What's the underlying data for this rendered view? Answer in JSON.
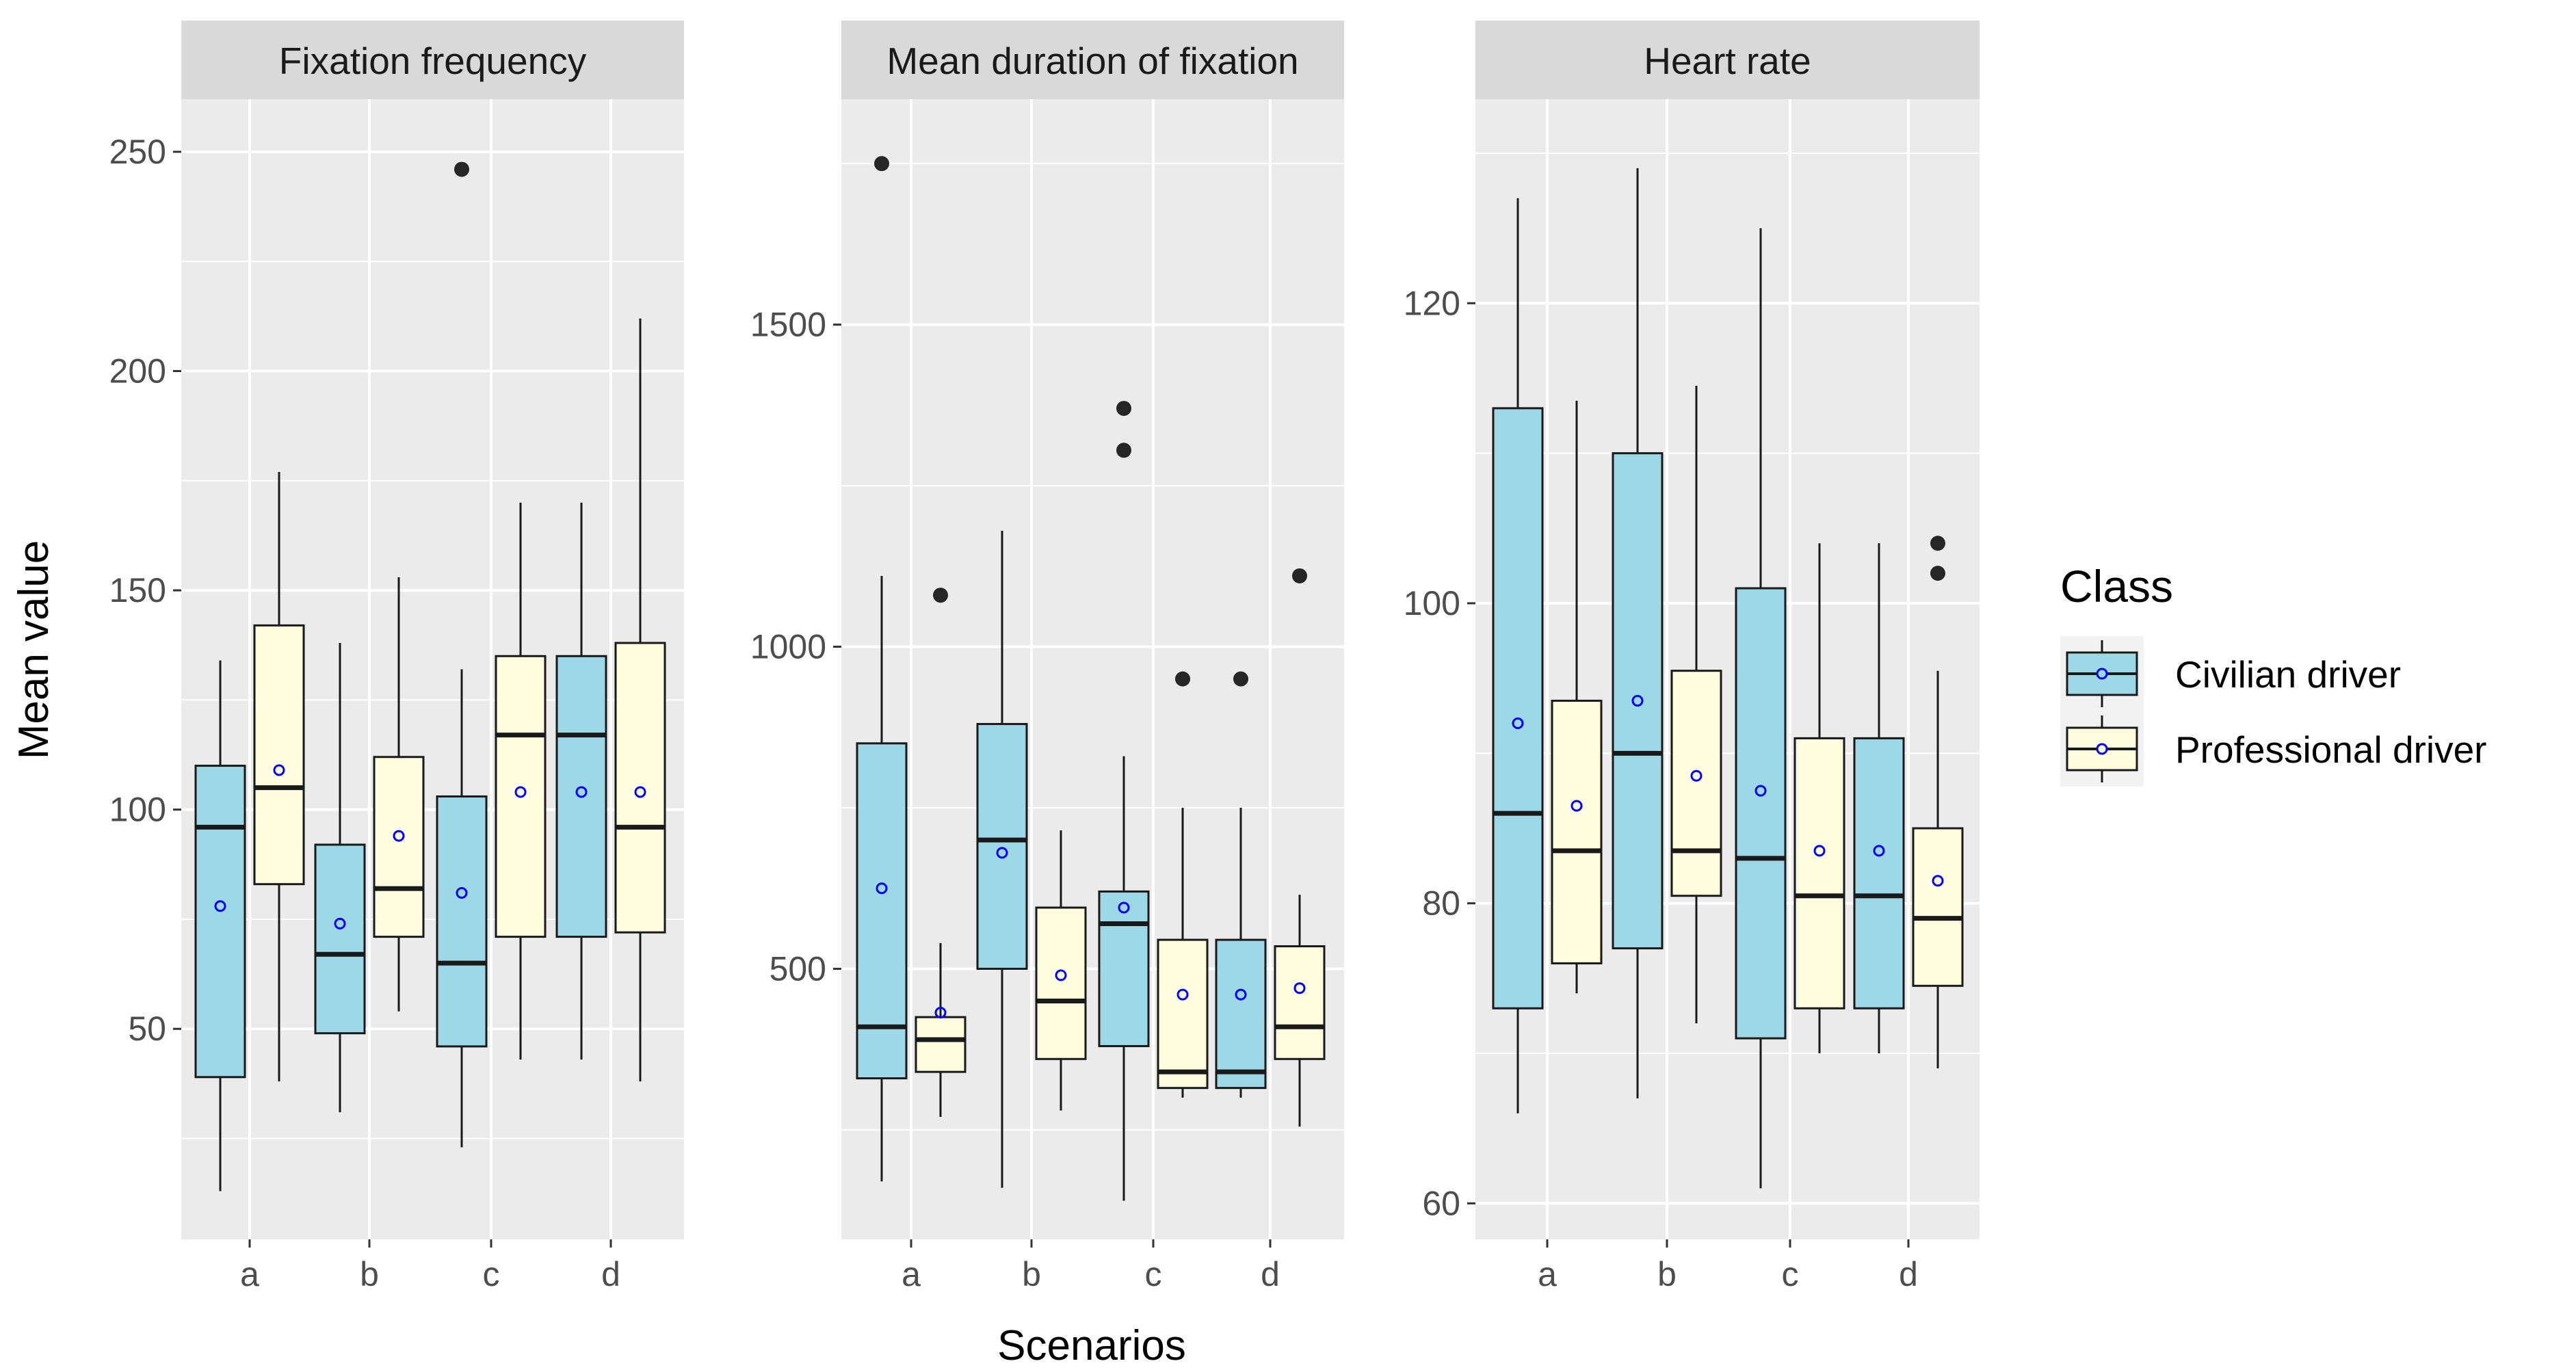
{
  "chart_data": {
    "type": "boxplot",
    "xlabel": "Scenarios",
    "ylabel": "Mean value",
    "legend": {
      "title": "Class",
      "position": "right",
      "entries": [
        {
          "name": "Civilian driver",
          "fill": "#9dd8e6"
        },
        {
          "name": "Professional driver",
          "fill": "#fffde0"
        }
      ]
    },
    "colors": {
      "panel_bg": "#ebebeb",
      "strip_bg": "#d9d9d9",
      "grid": "#ffffff",
      "mean_marker": "#0000ff",
      "outline": "#1a1a1a"
    },
    "panels": [
      {
        "title": "Fixation frequency",
        "ylim": [
          2,
          262
        ],
        "yticks": [
          50,
          100,
          150,
          200,
          250
        ],
        "categories": [
          "a",
          "b",
          "c",
          "d"
        ],
        "series": [
          {
            "name": "Civilian driver",
            "boxes": [
              {
                "lower": 13,
                "q1": 39,
                "median": 96,
                "q3": 110,
                "upper": 134,
                "mean": 78,
                "outliers": []
              },
              {
                "lower": 31,
                "q1": 49,
                "median": 67,
                "q3": 92,
                "upper": 138,
                "mean": 74,
                "outliers": []
              },
              {
                "lower": 23,
                "q1": 46,
                "median": 65,
                "q3": 103,
                "upper": 132,
                "mean": 81,
                "outliers": [
                  246
                ]
              },
              {
                "lower": 43,
                "q1": 71,
                "median": 117,
                "q3": 135,
                "upper": 170,
                "mean": 104,
                "outliers": []
              }
            ]
          },
          {
            "name": "Professional driver",
            "boxes": [
              {
                "lower": 38,
                "q1": 83,
                "median": 105,
                "q3": 142,
                "upper": 177,
                "mean": 109,
                "outliers": []
              },
              {
                "lower": 54,
                "q1": 71,
                "median": 82,
                "q3": 112,
                "upper": 153,
                "mean": 94,
                "outliers": []
              },
              {
                "lower": 43,
                "q1": 71,
                "median": 117,
                "q3": 135,
                "upper": 170,
                "mean": 104,
                "outliers": []
              },
              {
                "lower": 38,
                "q1": 72,
                "median": 96,
                "q3": 138,
                "upper": 212,
                "mean": 104,
                "outliers": []
              }
            ]
          }
        ]
      },
      {
        "title": "Mean duration of fixation",
        "ylim": [
          80,
          1850
        ],
        "yticks": [
          500,
          1000,
          1500
        ],
        "categories": [
          "a",
          "b",
          "c",
          "d"
        ],
        "series": [
          {
            "name": "Civilian driver",
            "boxes": [
              {
                "lower": 170,
                "q1": 330,
                "median": 410,
                "q3": 850,
                "upper": 1110,
                "mean": 625,
                "outliers": [
                  1750
                ]
              },
              {
                "lower": 160,
                "q1": 500,
                "median": 700,
                "q3": 880,
                "upper": 1180,
                "mean": 680,
                "outliers": []
              },
              {
                "lower": 140,
                "q1": 380,
                "median": 570,
                "q3": 620,
                "upper": 830,
                "mean": 595,
                "outliers": [
                  1370,
                  1305
                ]
              },
              {
                "lower": 300,
                "q1": 315,
                "median": 340,
                "q3": 545,
                "upper": 750,
                "mean": 460,
                "outliers": [
                  950
                ]
              }
            ]
          },
          {
            "name": "Professional driver",
            "boxes": [
              {
                "lower": 270,
                "q1": 340,
                "median": 390,
                "q3": 425,
                "upper": 540,
                "mean": 432,
                "outliers": [
                  1080
                ]
              },
              {
                "lower": 280,
                "q1": 360,
                "median": 450,
                "q3": 595,
                "upper": 715,
                "mean": 490,
                "outliers": []
              },
              {
                "lower": 300,
                "q1": 315,
                "median": 340,
                "q3": 545,
                "upper": 750,
                "mean": 460,
                "outliers": [
                  950
                ]
              },
              {
                "lower": 255,
                "q1": 360,
                "median": 410,
                "q3": 535,
                "upper": 615,
                "mean": 470,
                "outliers": [
                  1110
                ]
              }
            ]
          }
        ]
      },
      {
        "title": "Heart rate",
        "ylim": [
          57.6,
          133.6
        ],
        "yticks": [
          60,
          80,
          100,
          120
        ],
        "categories": [
          "a",
          "b",
          "c",
          "d"
        ],
        "series": [
          {
            "name": "Civilian driver",
            "boxes": [
              {
                "lower": 66,
                "q1": 73,
                "median": 86,
                "q3": 113,
                "upper": 127,
                "mean": 92,
                "outliers": []
              },
              {
                "lower": 67,
                "q1": 77,
                "median": 90,
                "q3": 110,
                "upper": 129,
                "mean": 93.5,
                "outliers": []
              },
              {
                "lower": 61,
                "q1": 71,
                "median": 83,
                "q3": 101,
                "upper": 125,
                "mean": 87.5,
                "outliers": []
              },
              {
                "lower": 70,
                "q1": 73,
                "median": 80.5,
                "q3": 91,
                "upper": 104,
                "mean": 83.5,
                "outliers": []
              }
            ]
          },
          {
            "name": "Professional driver",
            "boxes": [
              {
                "lower": 74,
                "q1": 76,
                "median": 83.5,
                "q3": 93.5,
                "upper": 113.5,
                "mean": 86.5,
                "outliers": []
              },
              {
                "lower": 72,
                "q1": 80.5,
                "median": 83.5,
                "q3": 95.5,
                "upper": 114.5,
                "mean": 88.5,
                "outliers": []
              },
              {
                "lower": 70,
                "q1": 73,
                "median": 80.5,
                "q3": 91,
                "upper": 104,
                "mean": 83.5,
                "outliers": []
              },
              {
                "lower": 69,
                "q1": 74.5,
                "median": 79,
                "q3": 85,
                "upper": 95.5,
                "mean": 81.5,
                "outliers": [
                  104,
                  102
                ]
              }
            ]
          }
        ]
      }
    ]
  }
}
